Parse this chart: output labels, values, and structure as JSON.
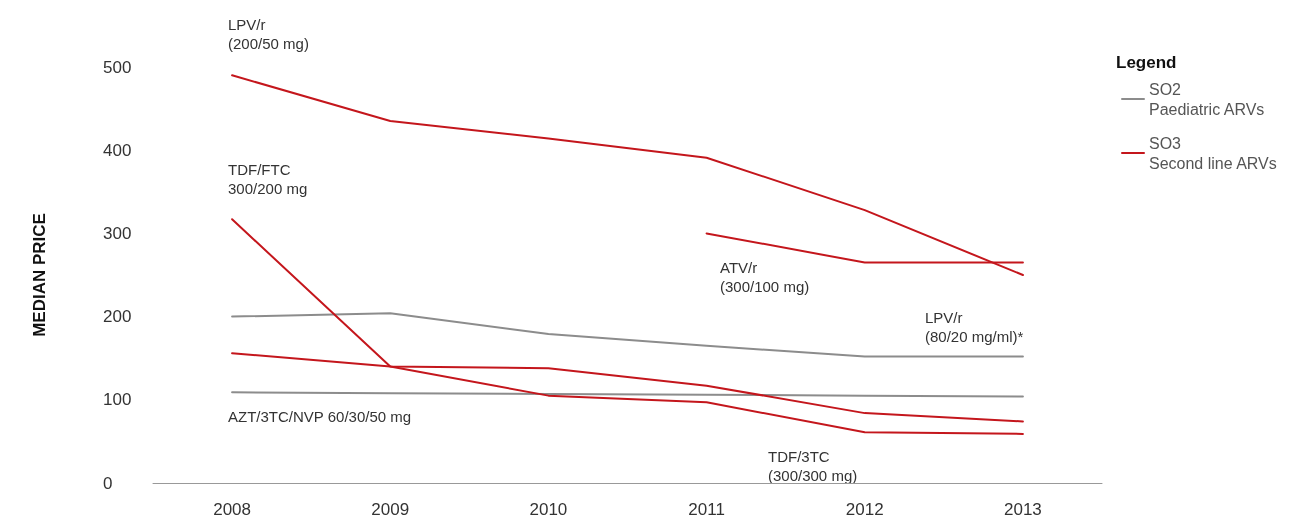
{
  "chart_data": {
    "type": "line",
    "ylabel": "MEDIAN PRICE",
    "legend_title": "Legend",
    "legend": "top right",
    "grid": false,
    "marker": "none",
    "line_style": "solid",
    "categories": [
      "2008",
      "2009",
      "2010",
      "2011",
      "2012",
      "2013"
    ],
    "ylim": [
      0,
      500
    ],
    "yticks": [
      0,
      100,
      200,
      300,
      400,
      500
    ],
    "series": [
      {
        "name": "SO2\nPaediatric ARVs",
        "color": "#8c8c8c",
        "values": [
          200,
          204,
          179,
          165,
          152,
          152
        ]
      },
      {
        "color": "#8c8c8c",
        "values": [
          109,
          108,
          107,
          106,
          105,
          104
        ]
      },
      {
        "name": "SO3\nSecond line ARVs",
        "color": "#c4161c",
        "values": [
          490,
          435,
          414,
          391,
          328,
          250
        ]
      },
      {
        "color": "#c4161c",
        "values": [
          null,
          null,
          null,
          300,
          265,
          265
        ]
      },
      {
        "color": "#c4161c",
        "values": [
          317,
          140,
          138,
          117,
          84,
          74
        ]
      },
      {
        "color": "#c4161c",
        "values": [
          156,
          140,
          105,
          97,
          61,
          59
        ]
      }
    ],
    "annotations": [
      "LPV/r\n(200/50 mg)",
      "TDF/FTC\n300/200 mg",
      "ATV/r\n(300/100 mg)",
      "LPV/r\n(80/20 mg/ml)*",
      "AZT/3TC/NVP 60/30/50 mg",
      "TDF/3TC\n(300/300 mg)"
    ]
  }
}
